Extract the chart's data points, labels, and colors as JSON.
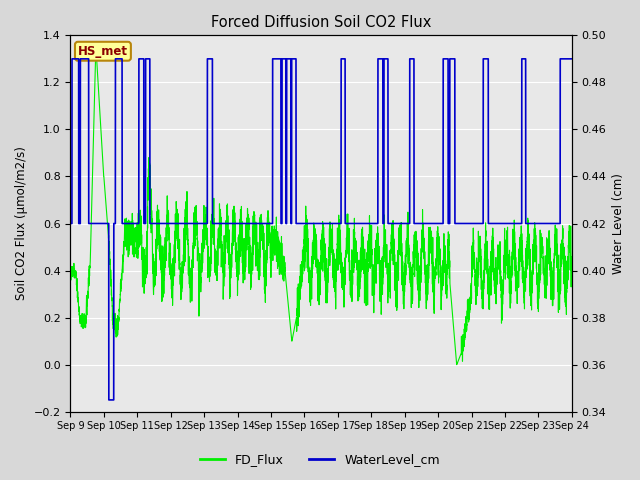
{
  "title": "Forced Diffusion Soil CO2 Flux",
  "ylabel_left": "Soil CO2 Flux (μmol/m2/s)",
  "ylabel_right": "Water Level (cm)",
  "ylim_left": [
    -0.2,
    1.4
  ],
  "ylim_right": [
    0.34,
    0.5
  ],
  "legend_label_green": "FD_Flux",
  "legend_label_blue": "WaterLevel_cm",
  "station_label": "HS_met",
  "xtick_labels": [
    "Sep 9",
    "Sep 10",
    "Sep 11",
    "Sep 12",
    "Sep 13",
    "Sep 14",
    "Sep 15",
    "Sep 16",
    "Sep 17",
    "Sep 18",
    "Sep 19",
    "Sep 20",
    "Sep 21",
    "Sep 22",
    "Sep 23",
    "Sep 24"
  ],
  "green_color": "#00ee00",
  "blue_color": "#0000cc",
  "bg_color": "#d8d8d8",
  "plot_bg_color": "#e8e8e8"
}
